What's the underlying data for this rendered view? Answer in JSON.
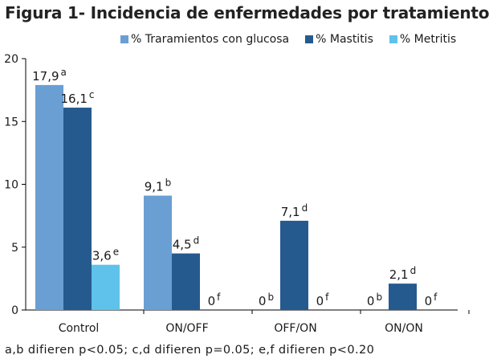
{
  "title": "Figura 1- Incidencia de enfermedades por tratamiento",
  "footnote": "a,b difieren p<0.05; c,d difieren p=0.05; e,f difieren p<0.20",
  "chart_data": {
    "type": "bar",
    "title": "Figura 1- Incidencia de enfermedades por tratamiento",
    "xlabel": "",
    "ylabel": "",
    "ylim": [
      0,
      20
    ],
    "yticks": [
      0,
      5,
      10,
      15,
      20
    ],
    "grid": false,
    "legend_position": "top",
    "categories": [
      "Control",
      "ON/OFF",
      "OFF/ON",
      "ON/ON"
    ],
    "series": [
      {
        "name": "% Traramientos con glucosa",
        "color": "#6a9fd4",
        "values": [
          17.9,
          9.1,
          0,
          0
        ],
        "labels": [
          "17,9",
          "9,1",
          "0",
          "0"
        ],
        "superscripts": [
          "a",
          "b",
          "b",
          "b"
        ]
      },
      {
        "name": "% Mastitis",
        "color": "#255a8e",
        "values": [
          16.1,
          4.5,
          7.1,
          2.1
        ],
        "labels": [
          "16,1",
          "4,5",
          "7,1",
          "2,1"
        ],
        "superscripts": [
          "c",
          "d",
          "d",
          "d"
        ]
      },
      {
        "name": "% Metritis",
        "color": "#5ec2ea",
        "values": [
          3.6,
          0,
          0,
          0
        ],
        "labels": [
          "3,6",
          "0",
          "0",
          "0"
        ],
        "superscripts": [
          "e",
          "f",
          "f",
          "f"
        ]
      }
    ]
  }
}
